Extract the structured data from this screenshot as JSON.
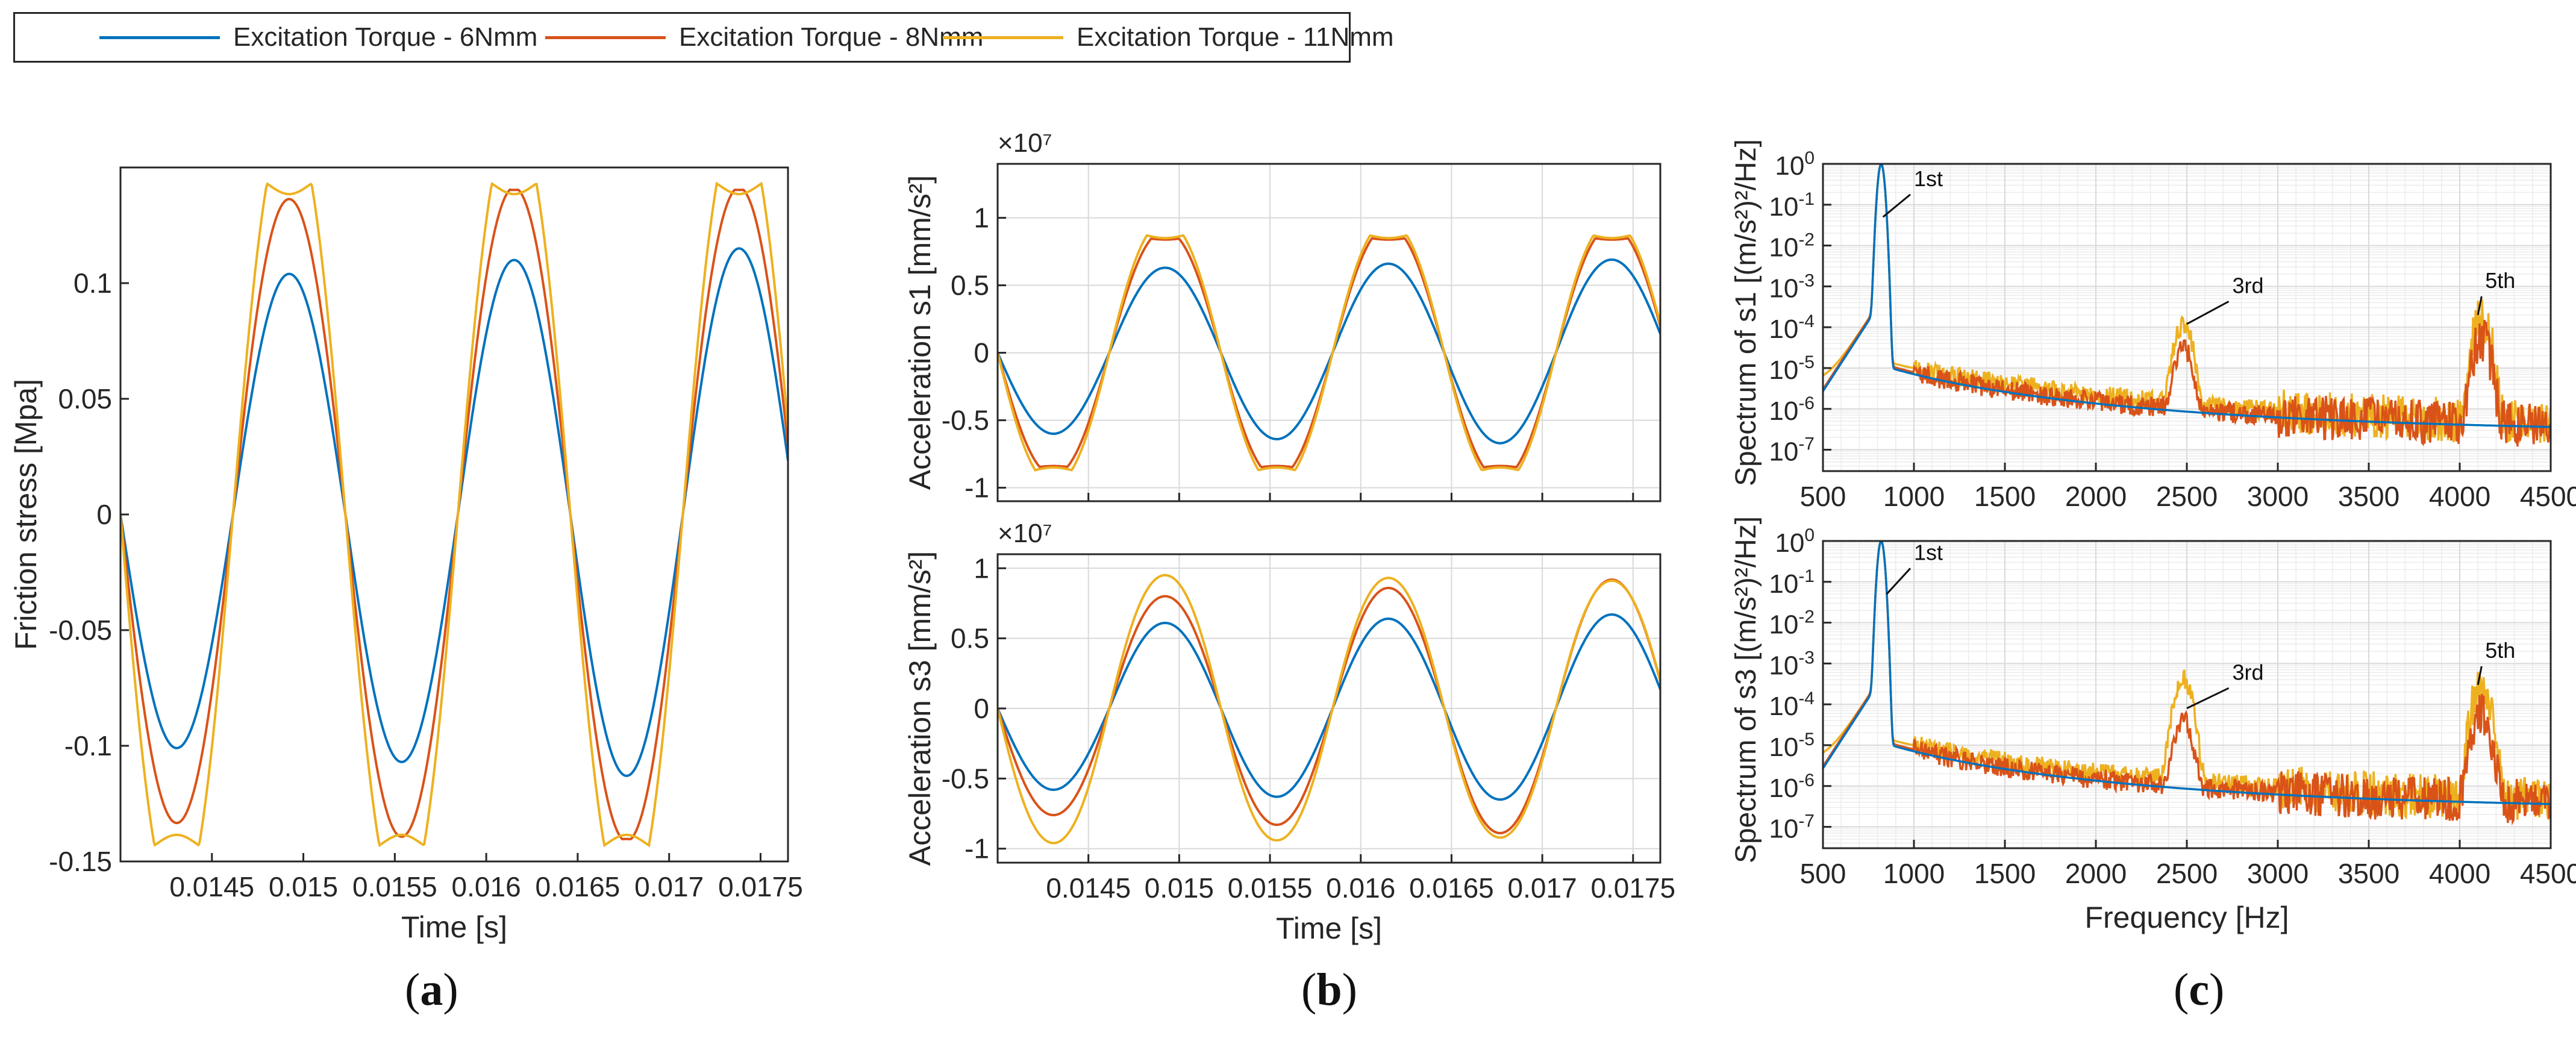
{
  "colors": {
    "s6": "#0072BD",
    "s8": "#D95319",
    "s11": "#EDB120",
    "grid": "#d9d9d9",
    "axis": "#262626"
  },
  "legend": {
    "items": [
      {
        "label": "Excitation Torque - 6Nmm",
        "color": "#0072BD"
      },
      {
        "label": "Excitation Torque - 8Nmm",
        "color": "#D95319"
      },
      {
        "label": "Excitation Torque - 11Nmm",
        "color": "#EDB120"
      }
    ]
  },
  "panels": {
    "a": "a",
    "b": "b",
    "c": "c"
  },
  "chart_data": [
    {
      "id": "a",
      "type": "line",
      "xlabel": "Time [s]",
      "ylabel": "Friction stress [Mpa]",
      "xlim": [
        0.014,
        0.01765
      ],
      "ylim": [
        -0.15,
        0.15
      ],
      "xticks": [
        0.0145,
        0.015,
        0.0155,
        0.016,
        0.0165,
        0.017,
        0.0175
      ],
      "xticklabels": [
        "0.0145",
        "0.015",
        "0.0155",
        "0.016",
        "0.0165",
        "0.017",
        "0.0175"
      ],
      "yticks": [
        -0.15,
        -0.1,
        -0.05,
        0,
        0.05,
        0.1
      ],
      "yticklabels": [
        "-0.15",
        "-0.1",
        "-0.05",
        "0",
        "0.05",
        "0.1"
      ],
      "grid": false,
      "period": 0.00123,
      "zero_crossing": 0.014,
      "series": [
        {
          "name": "Excitation Torque - 6Nmm",
          "amplitudes": [
            0.101,
            0.104,
            0.107,
            0.11,
            0.113,
            0.115
          ],
          "clip": 0.142
        },
        {
          "name": "Excitation Torque - 8Nmm",
          "amplitudes": [
            0.135,
            0.138,
            0.141,
            0.143,
            0.143,
            0.143
          ],
          "clip": 0.142
        },
        {
          "name": "Excitation Torque - 11Nmm",
          "amplitudes": [
            0.175,
            0.175,
            0.175,
            0.175,
            0.175,
            0.175
          ],
          "clip": 0.142
        }
      ]
    },
    {
      "id": "b1",
      "type": "line",
      "xlabel": "",
      "ylabel": "Acceleration s1 [mm/s²]",
      "multiplier": "×10⁷",
      "xlim": [
        0.014,
        0.01765
      ],
      "ylim": [
        -1.1,
        1.4
      ],
      "xticks": [
        0.0145,
        0.015,
        0.0155,
        0.016,
        0.0165,
        0.017,
        0.0175
      ],
      "xticklabels": [],
      "yticks": [
        -1,
        -0.5,
        0,
        0.5,
        1
      ],
      "yticklabels": [
        "-1",
        "-0.5",
        "0",
        "0.5",
        "1"
      ],
      "grid": true,
      "period": 0.00123,
      "zero_crossing": 0.014,
      "series": [
        {
          "name": "Excitation Torque - 6Nmm",
          "amplitudes": [
            0.6,
            0.63,
            0.64,
            0.66,
            0.67,
            0.69
          ],
          "clip": 5
        },
        {
          "name": "Excitation Torque - 8Nmm",
          "amplitudes": [
            0.92,
            0.92,
            0.94,
            0.95,
            0.95,
            0.95
          ],
          "clip": 0.85
        },
        {
          "name": "Excitation Torque - 11Nmm",
          "amplitudes": [
            1.0,
            1.0,
            1.0,
            1.0,
            1.0,
            1.0
          ],
          "clip": 0.87
        }
      ]
    },
    {
      "id": "b3",
      "type": "line",
      "xlabel": "Time [s]",
      "ylabel": "Acceleration s3 [mm/s²]",
      "multiplier": "×10⁷",
      "xlim": [
        0.014,
        0.01765
      ],
      "ylim": [
        -1.1,
        1.1
      ],
      "xticks": [
        0.0145,
        0.015,
        0.0155,
        0.016,
        0.0165,
        0.017,
        0.0175
      ],
      "xticklabels": [
        "0.0145",
        "0.015",
        "0.0155",
        "0.016",
        "0.0165",
        "0.017",
        "0.0175"
      ],
      "yticks": [
        -1,
        -0.5,
        0,
        0.5,
        1
      ],
      "yticklabels": [
        "-1",
        "-0.5",
        "0",
        "0.5",
        "1"
      ],
      "grid": true,
      "period": 0.00123,
      "zero_crossing": 0.014,
      "series": [
        {
          "name": "Excitation Torque - 6Nmm",
          "amplitudes": [
            0.58,
            0.61,
            0.63,
            0.64,
            0.65,
            0.67
          ],
          "clip": 5
        },
        {
          "name": "Excitation Torque - 8Nmm",
          "amplitudes": [
            0.77,
            0.81,
            0.84,
            0.87,
            0.9,
            0.93
          ],
          "clip": 5
        },
        {
          "name": "Excitation Torque - 11Nmm",
          "amplitudes": [
            0.98,
            0.97,
            0.96,
            0.95,
            0.94,
            0.93
          ],
          "clip": 5
        }
      ]
    },
    {
      "id": "c1",
      "type": "line",
      "yscale": "log",
      "xlabel": "",
      "ylabel": "Spectrum of s1 [(m/s²)²/Hz]",
      "xlim": [
        500,
        4500
      ],
      "ylim": [
        3e-08,
        1
      ],
      "xticks": [
        500,
        1000,
        1500,
        2000,
        2500,
        3000,
        3500,
        4000,
        4500
      ],
      "xticklabels": [
        "500",
        "1000",
        "1500",
        "2000",
        "2500",
        "3000",
        "3500",
        "4000",
        "4500"
      ],
      "ytick_labels": [
        {
          "base": "10",
          "exp": "0",
          "value": 1
        },
        {
          "base": "10",
          "exp": "-1",
          "value": 0.1
        },
        {
          "base": "10",
          "exp": "-2",
          "value": 0.01
        },
        {
          "base": "10",
          "exp": "-3",
          "value": 0.001
        },
        {
          "base": "10",
          "exp": "-4",
          "value": 0.0001
        },
        {
          "base": "10",
          "exp": "-5",
          "value": 1e-05
        },
        {
          "base": "10",
          "exp": "-6",
          "value": 1e-06
        },
        {
          "base": "10",
          "exp": "-7",
          "value": 1e-07
        }
      ],
      "grid": true,
      "annotations": [
        {
          "text": "1st",
          "x": 1000,
          "y": 0.25,
          "ax": 830,
          "ay": 0.05
        },
        {
          "text": "3rd",
          "x": 2750,
          "y": 0.0006,
          "ax": 2500,
          "ay": 0.00012
        },
        {
          "text": "5th",
          "x": 4140,
          "y": 0.0008,
          "ax": 4100,
          "ay": 0.0002
        }
      ],
      "peaks": [
        {
          "series": "Excitation Torque - 6Nmm",
          "f1": 1.0,
          "f3": 0,
          "f5": 0
        },
        {
          "series": "Excitation Torque - 8Nmm",
          "f1": 1.0,
          "f3": 3e-05,
          "f5": 5e-05
        },
        {
          "series": "Excitation Torque - 11Nmm",
          "f1": 1.0,
          "f3": 0.00012,
          "f5": 0.00016
        }
      ]
    },
    {
      "id": "c3",
      "type": "line",
      "yscale": "log",
      "xlabel": "Frequency [Hz]",
      "ylabel": "Spectrum of s3 [(m/s²)²/Hz]",
      "xlim": [
        500,
        4500
      ],
      "ylim": [
        3e-08,
        1
      ],
      "xticks": [
        500,
        1000,
        1500,
        2000,
        2500,
        3000,
        3500,
        4000,
        4500
      ],
      "xticklabels": [
        "500",
        "1000",
        "1500",
        "2000",
        "2500",
        "3000",
        "3500",
        "4000",
        "4500"
      ],
      "ytick_labels": [
        {
          "base": "10",
          "exp": "0",
          "value": 1
        },
        {
          "base": "10",
          "exp": "-1",
          "value": 0.1
        },
        {
          "base": "10",
          "exp": "-2",
          "value": 0.01
        },
        {
          "base": "10",
          "exp": "-3",
          "value": 0.001
        },
        {
          "base": "10",
          "exp": "-4",
          "value": 0.0001
        },
        {
          "base": "10",
          "exp": "-5",
          "value": 1e-05
        },
        {
          "base": "10",
          "exp": "-6",
          "value": 1e-06
        },
        {
          "base": "10",
          "exp": "-7",
          "value": 1e-07
        }
      ],
      "grid": true,
      "annotations": [
        {
          "text": "1st",
          "x": 1000,
          "y": 0.3,
          "ax": 850,
          "ay": 0.05
        },
        {
          "text": "3rd",
          "x": 2750,
          "y": 0.00035,
          "ax": 2500,
          "ay": 8e-05
        },
        {
          "text": "5th",
          "x": 4140,
          "y": 0.0012,
          "ax": 4100,
          "ay": 0.0003
        }
      ],
      "peaks": [
        {
          "series": "Excitation Torque - 6Nmm",
          "f1": 1.0,
          "f3": 0,
          "f5": 0
        },
        {
          "series": "Excitation Torque - 8Nmm",
          "f1": 1.0,
          "f3": 4e-05,
          "f5": 6e-05
        },
        {
          "series": "Excitation Torque - 11Nmm",
          "f1": 1.0,
          "f3": 0.0004,
          "f5": 0.0003
        }
      ]
    }
  ]
}
